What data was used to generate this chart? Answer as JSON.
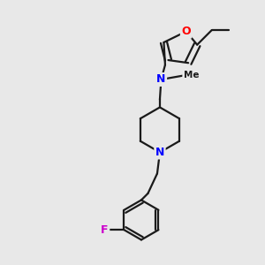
{
  "bg_color": "#e8e8e8",
  "atom_color_N": "#0000ff",
  "atom_color_O": "#ff0000",
  "atom_color_F": "#cc00cc",
  "bond_color": "#1a1a1a",
  "bond_width": 1.6,
  "dbo": 0.12,
  "xlim": [
    0,
    10
  ],
  "ylim": [
    0,
    10
  ]
}
